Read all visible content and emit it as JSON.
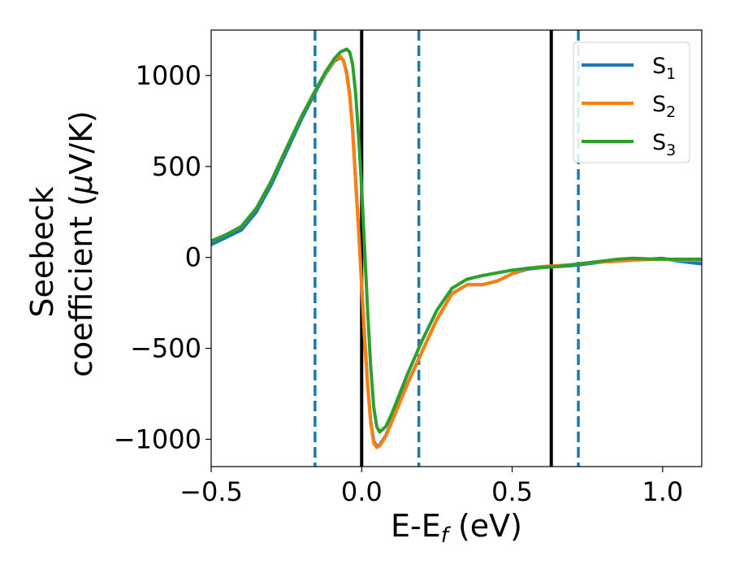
{
  "chart_data": {
    "type": "line",
    "title": "",
    "xlabel": {
      "main": "E-E",
      "sub": "f",
      "unit": " (eV)"
    },
    "ylabel": {
      "line1": "Seebeck",
      "line2": "coefficient  (",
      "mu": "μ",
      "unit": "V/K)"
    },
    "xlim": [
      -0.5,
      1.13
    ],
    "ylim": [
      -1150,
      1250
    ],
    "xticks": [
      {
        "value": -0.5,
        "label": "−0.5"
      },
      {
        "value": 0.0,
        "label": "0.0"
      },
      {
        "value": 0.5,
        "label": "0.5"
      },
      {
        "value": 1.0,
        "label": "1.0"
      }
    ],
    "yticks": [
      {
        "value": -1000,
        "label": "−1000"
      },
      {
        "value": -500,
        "label": "−500"
      },
      {
        "value": 0,
        "label": "0"
      },
      {
        "value": 500,
        "label": "500"
      },
      {
        "value": 1000,
        "label": "1000"
      }
    ],
    "grid": false,
    "legend_position": "top-right",
    "vlines": [
      {
        "x": -0.155,
        "style": "dashed",
        "color": "#1f77b4"
      },
      {
        "x": 0.0,
        "style": "solid",
        "color": "#000000"
      },
      {
        "x": 0.19,
        "style": "dashed",
        "color": "#1f77b4"
      },
      {
        "x": 0.63,
        "style": "solid",
        "color": "#000000"
      },
      {
        "x": 0.72,
        "style": "dashed",
        "color": "#1f77b4"
      }
    ],
    "series": [
      {
        "name": "S",
        "sub": "1",
        "color": "#1f77b4",
        "x": [
          -0.5,
          -0.45,
          -0.4,
          -0.35,
          -0.3,
          -0.25,
          -0.2,
          -0.15,
          -0.12,
          -0.09,
          -0.07,
          -0.06,
          -0.05,
          -0.04,
          -0.03,
          -0.02,
          -0.01,
          0.0,
          0.01,
          0.02,
          0.03,
          0.04,
          0.05,
          0.06,
          0.08,
          0.1,
          0.15,
          0.2,
          0.25,
          0.3,
          0.35,
          0.4,
          0.45,
          0.5,
          0.55,
          0.6,
          0.65,
          0.7,
          0.75,
          0.8,
          0.85,
          0.9,
          0.95,
          1.0,
          1.05,
          1.1,
          1.13
        ],
        "y": [
          70,
          110,
          150,
          250,
          400,
          580,
          760,
          920,
          1010,
          1080,
          1100,
          1080,
          1020,
          900,
          700,
          420,
          150,
          -150,
          -450,
          -700,
          -900,
          -1010,
          -1040,
          -1030,
          -980,
          -900,
          -700,
          -520,
          -340,
          -200,
          -150,
          -150,
          -130,
          -90,
          -65,
          -55,
          -50,
          -45,
          -35,
          -25,
          -20,
          -15,
          -10,
          -5,
          -20,
          -30,
          -35
        ]
      },
      {
        "name": "S",
        "sub": "2",
        "color": "#ff7f0e",
        "x": [
          -0.5,
          -0.45,
          -0.4,
          -0.35,
          -0.3,
          -0.25,
          -0.2,
          -0.15,
          -0.12,
          -0.09,
          -0.07,
          -0.06,
          -0.05,
          -0.04,
          -0.03,
          -0.02,
          -0.01,
          0.0,
          0.01,
          0.02,
          0.03,
          0.04,
          0.05,
          0.06,
          0.08,
          0.1,
          0.15,
          0.2,
          0.25,
          0.3,
          0.35,
          0.4,
          0.45,
          0.5,
          0.55,
          0.6,
          0.65,
          0.7,
          0.75,
          0.8,
          0.85,
          0.9,
          0.95,
          1.0,
          1.05,
          1.1,
          1.13
        ],
        "y": [
          90,
          125,
          170,
          270,
          420,
          600,
          775,
          930,
          1015,
          1085,
          1105,
          1080,
          1010,
          890,
          690,
          410,
          140,
          -160,
          -460,
          -710,
          -910,
          -1020,
          -1045,
          -1035,
          -985,
          -905,
          -705,
          -520,
          -340,
          -200,
          -150,
          -150,
          -130,
          -90,
          -60,
          -50,
          -45,
          -40,
          -30,
          -25,
          -20,
          -15,
          -12,
          -10,
          -15,
          -15,
          -15
        ]
      },
      {
        "name": "S",
        "sub": "3",
        "color": "#2ca02c",
        "x": [
          -0.5,
          -0.45,
          -0.4,
          -0.35,
          -0.3,
          -0.25,
          -0.2,
          -0.15,
          -0.12,
          -0.09,
          -0.07,
          -0.05,
          -0.04,
          -0.03,
          -0.02,
          -0.01,
          0.0,
          0.01,
          0.02,
          0.03,
          0.04,
          0.05,
          0.06,
          0.08,
          0.1,
          0.15,
          0.2,
          0.25,
          0.3,
          0.35,
          0.4,
          0.45,
          0.5,
          0.55,
          0.6,
          0.65,
          0.7,
          0.75,
          0.8,
          0.85,
          0.9,
          0.95,
          1.0,
          1.05,
          1.1,
          1.13
        ],
        "y": [
          90,
          125,
          170,
          270,
          420,
          600,
          775,
          930,
          1020,
          1095,
          1130,
          1145,
          1130,
          1060,
          900,
          660,
          380,
          40,
          -300,
          -600,
          -820,
          -930,
          -960,
          -930,
          -860,
          -650,
          -460,
          -290,
          -170,
          -120,
          -100,
          -85,
          -70,
          -60,
          -55,
          -50,
          -40,
          -30,
          -20,
          -10,
          -5,
          -8,
          -10,
          -10,
          -10,
          -10
        ]
      }
    ]
  }
}
